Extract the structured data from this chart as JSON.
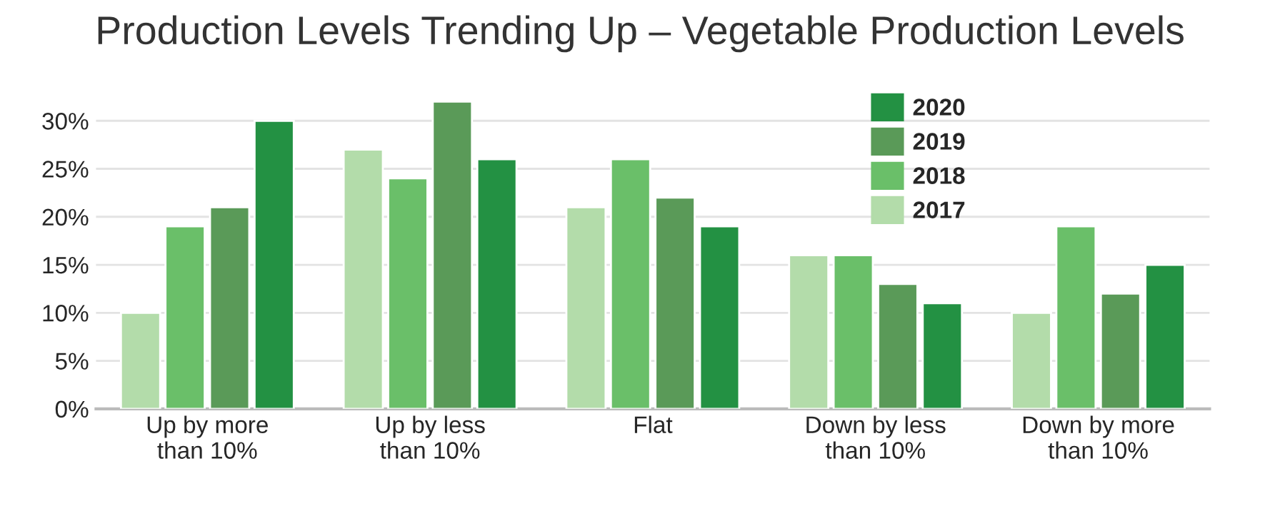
{
  "chart_data": {
    "type": "bar",
    "title": "Production Levels Trending Up – Vegetable Production Levels",
    "categories": [
      "Up by more\nthan 10%",
      "Up by less\nthan 10%",
      "Flat",
      "Down by less\nthan 10%",
      "Down by more\nthan 10%"
    ],
    "series": [
      {
        "name": "2017",
        "color": "#b3dcaa",
        "values": [
          10,
          27,
          21,
          16,
          10
        ]
      },
      {
        "name": "2018",
        "color": "#6abf69",
        "values": [
          19,
          24,
          26,
          16,
          19
        ]
      },
      {
        "name": "2019",
        "color": "#5a9a58",
        "values": [
          21,
          32,
          22,
          13,
          12
        ]
      },
      {
        "name": "2020",
        "color": "#239143",
        "values": [
          30,
          26,
          19,
          11,
          15
        ]
      }
    ],
    "ylim": [
      0,
      33
    ],
    "yticks": [
      {
        "value": 0,
        "label": "0%"
      },
      {
        "value": 5,
        "label": "5%"
      },
      {
        "value": 10,
        "label": "10%"
      },
      {
        "value": 15,
        "label": "15%"
      },
      {
        "value": 20,
        "label": "20%"
      },
      {
        "value": 25,
        "label": "25%"
      },
      {
        "value": 30,
        "label": "30%"
      }
    ],
    "grid": "y",
    "legend": "top right"
  }
}
